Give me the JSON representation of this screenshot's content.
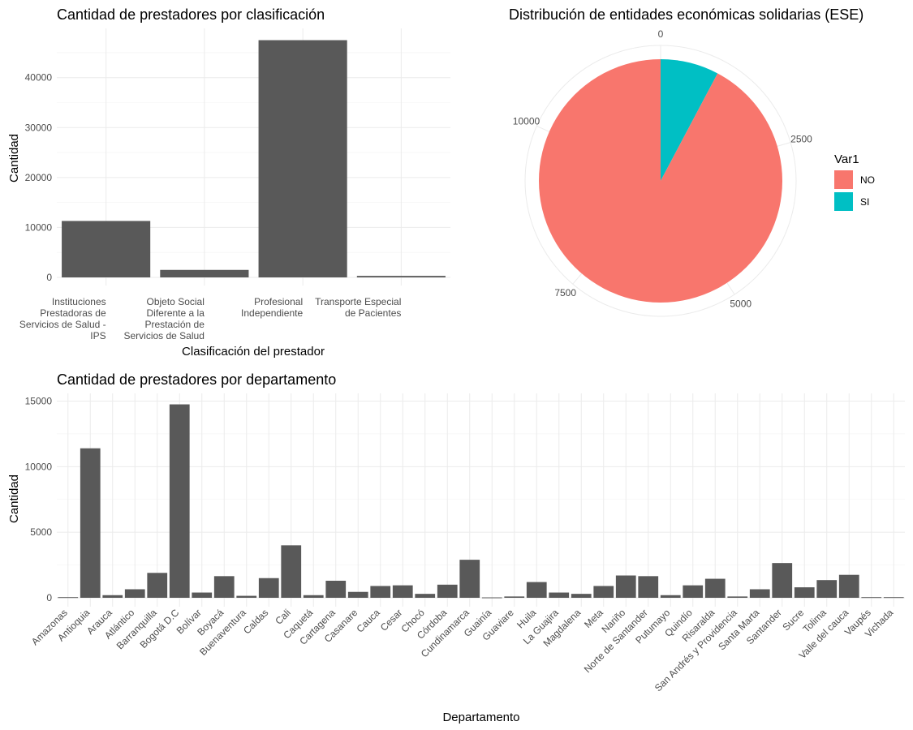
{
  "chart_data": [
    {
      "type": "bar",
      "title": "Cantidad de prestadores por clasificación",
      "xlabel": "Clasificación del prestador",
      "ylabel": "Cantidad",
      "categories": [
        "Instituciones Prestadoras de Servicios de Salud - IPS",
        "Objeto Social Diferente a la Prestación de Servicios de Salud",
        "Profesional Independiente",
        "Transporte Especial de Pacientes"
      ],
      "category_lines": [
        [
          "Instituciones",
          "Prestadoras de",
          "Servicios de Salud -",
          "IPS"
        ],
        [
          "Objeto Social",
          "Diferente a la",
          "Prestación de",
          "Servicios de Salud"
        ],
        [
          "Profesional",
          "Independiente"
        ],
        [
          "Transporte Especial",
          "de Pacientes"
        ]
      ],
      "values": [
        11300,
        1500,
        47500,
        300
      ],
      "ylim": [
        0,
        48000
      ],
      "yticks": [
        0,
        10000,
        20000,
        30000,
        40000
      ],
      "grid": true,
      "bar_color": "#595959"
    },
    {
      "type": "pie",
      "title": "Distribución de entidades económicas solidarias (ESE)",
      "legend_title": "Var1",
      "legend_position": "right",
      "slices": [
        {
          "label": "SI",
          "value": 950,
          "color": "#00BFC4"
        },
        {
          "label": "NO",
          "value": 11300,
          "color": "#F8766D"
        }
      ],
      "radial_ticks": [
        0,
        2500,
        5000,
        7500,
        10000
      ],
      "total": 12250,
      "grid": true
    },
    {
      "type": "bar",
      "title": "Cantidad de prestadores por departamento",
      "xlabel": "Departamento",
      "ylabel": "Cantidad",
      "categories": [
        "Amazonas",
        "Antioquia",
        "Arauca",
        "Atlántico",
        "Barranquilla",
        "Bogotá D.C",
        "Bolívar",
        "Boyacá",
        "Buenaventura",
        "Caldas",
        "Cali",
        "Caquetá",
        "Cartagena",
        "Casanare",
        "Cauca",
        "Cesar",
        "Chocó",
        "Córdoba",
        "Cundinamarca",
        "Guainía",
        "Guaviare",
        "Huila",
        "La Guajira",
        "Magdalena",
        "Meta",
        "Nariño",
        "Norte de Santander",
        "Putumayo",
        "Quindío",
        "Risaralda",
        "San Andrés y Providencia",
        "Santa Marta",
        "Santander",
        "Sucre",
        "Tolima",
        "Valle del cauca",
        "Vaupés",
        "Vichada"
      ],
      "values": [
        50,
        11400,
        200,
        650,
        1900,
        14750,
        400,
        1650,
        150,
        1500,
        4000,
        200,
        1300,
        450,
        900,
        950,
        300,
        1000,
        2900,
        30,
        100,
        1200,
        400,
        300,
        900,
        1700,
        1650,
        200,
        950,
        1450,
        100,
        650,
        2650,
        800,
        1350,
        1750,
        50,
        50
      ],
      "ylim": [
        -300,
        15400
      ],
      "yticks": [
        0,
        5000,
        10000,
        15000
      ],
      "grid": true,
      "bar_color": "#595959"
    }
  ]
}
